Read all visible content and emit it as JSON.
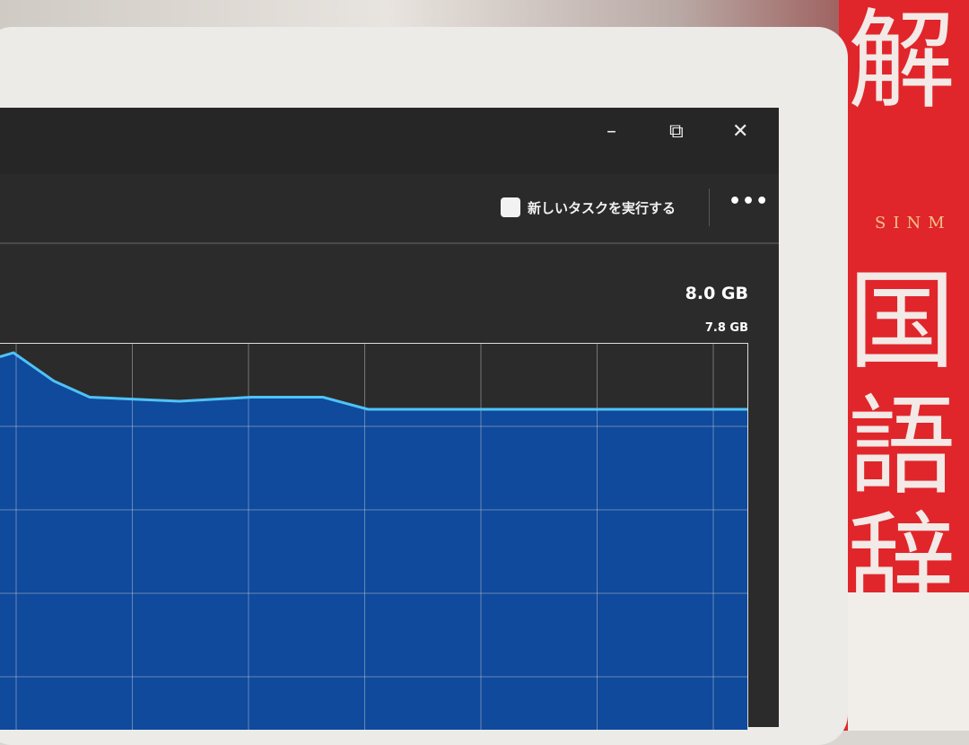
{
  "window": {
    "minimize_icon": "minimize-icon",
    "maximize_icon": "restore-icon",
    "close_icon": "close-icon",
    "minimize": "–",
    "maximize": "⧉",
    "close": "✕"
  },
  "toolbar": {
    "new_task_label": "新しいタスクを実行する",
    "more_label": "•••"
  },
  "memory": {
    "max_label": "8.0 GB",
    "current_label": "7.8 GB",
    "usage_fill_percent": [
      99,
      100,
      93,
      89,
      88,
      89,
      89,
      86,
      86,
      86
    ],
    "fill_color": "#0f4a9c",
    "line_color": "#4fc3f7"
  },
  "background": {
    "book_text": "SINM",
    "book_kanji": [
      "解",
      "国",
      "語",
      "辞"
    ]
  }
}
